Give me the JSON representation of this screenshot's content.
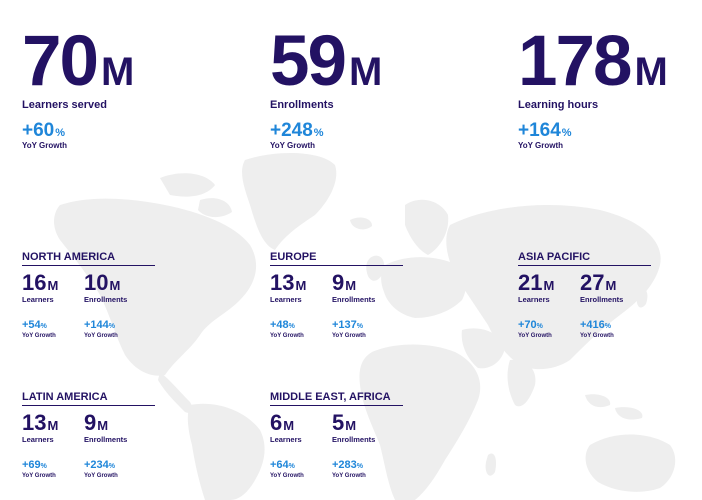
{
  "colors": {
    "navy": "#231263",
    "blue": "#1f86d9",
    "map": "#eeeeee"
  },
  "top": [
    {
      "value": "70",
      "unit": "M",
      "label": "Learners served",
      "growth": "+60",
      "growth_unit": "%",
      "growth_label": "YoY Growth"
    },
    {
      "value": "59",
      "unit": "M",
      "label": "Enrollments",
      "growth": "+248",
      "growth_unit": "%",
      "growth_label": "YoY Growth"
    },
    {
      "value": "178",
      "unit": "M",
      "label": "Learning hours",
      "growth": "+164",
      "growth_unit": "%",
      "growth_label": "YoY Growth"
    }
  ],
  "regions": [
    {
      "name": "NORTH AMERICA",
      "learners": {
        "value": "16",
        "unit": "M",
        "label": "Learners",
        "growth": "+54",
        "growth_unit": "%",
        "growth_label": "YoY Growth"
      },
      "enrollments": {
        "value": "10",
        "unit": "M",
        "label": "Enrollments",
        "growth": "+144",
        "growth_unit": "%",
        "growth_label": "YoY Growth"
      }
    },
    {
      "name": "EUROPE",
      "learners": {
        "value": "13",
        "unit": "M",
        "label": "Learners",
        "growth": "+48",
        "growth_unit": "%",
        "growth_label": "YoY Growth"
      },
      "enrollments": {
        "value": "9",
        "unit": "M",
        "label": "Enrollments",
        "growth": "+137",
        "growth_unit": "%",
        "growth_label": "YoY Growth"
      }
    },
    {
      "name": "ASIA PACIFIC",
      "learners": {
        "value": "21",
        "unit": "M",
        "label": "Learners",
        "growth": "+70",
        "growth_unit": "%",
        "growth_label": "YoY Growth"
      },
      "enrollments": {
        "value": "27",
        "unit": "M",
        "label": "Enrollments",
        "growth": "+416",
        "growth_unit": "%",
        "growth_label": "YoY Growth"
      }
    },
    {
      "name": "LATIN AMERICA",
      "learners": {
        "value": "13",
        "unit": "M",
        "label": "Learners",
        "growth": "+69",
        "growth_unit": "%",
        "growth_label": "YoY Growth"
      },
      "enrollments": {
        "value": "9",
        "unit": "M",
        "label": "Enrollments",
        "growth": "+234",
        "growth_unit": "%",
        "growth_label": "YoY Growth"
      }
    },
    {
      "name": "MIDDLE EAST, AFRICA",
      "learners": {
        "value": "6",
        "unit": "M",
        "label": "Learners",
        "growth": "+64",
        "growth_unit": "%",
        "growth_label": "YoY Growth"
      },
      "enrollments": {
        "value": "5",
        "unit": "M",
        "label": "Enrollments",
        "growth": "+283",
        "growth_unit": "%",
        "growth_label": "YoY Growth"
      }
    }
  ]
}
